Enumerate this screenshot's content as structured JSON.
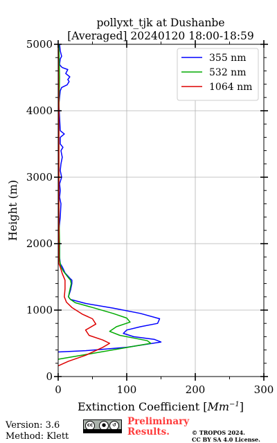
{
  "chart_data": {
    "type": "line",
    "title": "pollyxt_tjk at Dushanbe",
    "subtitle": "[Averaged] 20240120 18:00-18:59",
    "xlabel_prefix": "Extinction Coefficient [",
    "xlabel_unit": "Mm",
    "xlabel_exp": "−1",
    "xlabel_suffix": "]",
    "ylabel": "Height (m)",
    "xlim": [
      0,
      300
    ],
    "ylim": [
      0,
      5000
    ],
    "xticks": [
      0,
      100,
      200,
      300
    ],
    "xtick_labels": [
      "0",
      "100",
      "200",
      "300"
    ],
    "yticks": [
      0,
      1000,
      2000,
      3000,
      4000,
      5000
    ],
    "ytick_labels": [
      "0",
      "1000",
      "2000",
      "3000",
      "4000",
      "5000"
    ],
    "grid": true,
    "legend_position": "top-right",
    "series": [
      {
        "name": "355 nm",
        "color": "#0000ff",
        "points": [
          [
            0,
            370
          ],
          [
            40,
            390
          ],
          [
            100,
            440
          ],
          [
            150,
            520
          ],
          [
            140,
            560
          ],
          [
            110,
            600
          ],
          [
            95,
            650
          ],
          [
            100,
            700
          ],
          [
            120,
            750
          ],
          [
            145,
            800
          ],
          [
            148,
            870
          ],
          [
            120,
            950
          ],
          [
            80,
            1030
          ],
          [
            40,
            1100
          ],
          [
            18,
            1160
          ],
          [
            15,
            1200
          ],
          [
            18,
            1300
          ],
          [
            20,
            1400
          ],
          [
            20,
            1450
          ],
          [
            17,
            1480
          ],
          [
            10,
            1560
          ],
          [
            6,
            1650
          ],
          [
            3,
            1700
          ],
          [
            2,
            1800
          ],
          [
            2,
            2000
          ],
          [
            1,
            2200
          ],
          [
            3,
            2400
          ],
          [
            4,
            2600
          ],
          [
            2,
            2700
          ],
          [
            3,
            2800
          ],
          [
            2,
            2900
          ],
          [
            5,
            3000
          ],
          [
            3,
            3100
          ],
          [
            4,
            3200
          ],
          [
            6,
            3300
          ],
          [
            4,
            3400
          ],
          [
            7,
            3450
          ],
          [
            3,
            3500
          ],
          [
            3,
            3600
          ],
          [
            9,
            3650
          ],
          [
            3,
            3700
          ],
          [
            2,
            3900
          ],
          [
            1,
            4100
          ],
          [
            3,
            4300
          ],
          [
            5,
            4350
          ],
          [
            13,
            4390
          ],
          [
            16,
            4440
          ],
          [
            14,
            4470
          ],
          [
            17,
            4510
          ],
          [
            11,
            4560
          ],
          [
            14,
            4620
          ],
          [
            6,
            4650
          ],
          [
            3,
            4680
          ],
          [
            2,
            4700
          ],
          [
            3,
            4780
          ],
          [
            5,
            4820
          ],
          [
            3,
            4900
          ],
          [
            2,
            5000
          ]
        ]
      },
      {
        "name": "532 nm",
        "color": "#00aa00",
        "points": [
          [
            0,
            260
          ],
          [
            40,
            330
          ],
          [
            90,
            420
          ],
          [
            135,
            500
          ],
          [
            130,
            540
          ],
          [
            110,
            580
          ],
          [
            90,
            620
          ],
          [
            75,
            680
          ],
          [
            85,
            750
          ],
          [
            105,
            820
          ],
          [
            100,
            880
          ],
          [
            80,
            950
          ],
          [
            50,
            1040
          ],
          [
            25,
            1110
          ],
          [
            18,
            1160
          ],
          [
            15,
            1200
          ],
          [
            17,
            1300
          ],
          [
            19,
            1400
          ],
          [
            18,
            1450
          ],
          [
            14,
            1500
          ],
          [
            8,
            1580
          ],
          [
            4,
            1650
          ],
          [
            2,
            1750
          ],
          [
            2,
            2000
          ],
          [
            1,
            2500
          ],
          [
            1,
            3000
          ],
          [
            1,
            3500
          ],
          [
            1,
            4000
          ],
          [
            2,
            4500
          ],
          [
            1,
            5000
          ]
        ]
      },
      {
        "name": "1064 nm",
        "color": "#dd0000",
        "points": [
          [
            0,
            160
          ],
          [
            15,
            230
          ],
          [
            40,
            320
          ],
          [
            65,
            440
          ],
          [
            75,
            500
          ],
          [
            65,
            550
          ],
          [
            45,
            620
          ],
          [
            40,
            700
          ],
          [
            55,
            790
          ],
          [
            50,
            870
          ],
          [
            35,
            940
          ],
          [
            20,
            1040
          ],
          [
            12,
            1120
          ],
          [
            9,
            1200
          ],
          [
            10,
            1320
          ],
          [
            10,
            1450
          ],
          [
            6,
            1550
          ],
          [
            3,
            1650
          ],
          [
            1,
            1700
          ],
          [
            1,
            2000
          ],
          [
            1,
            3000
          ],
          [
            1,
            4000
          ],
          [
            0,
            5000
          ]
        ]
      }
    ]
  },
  "footer": {
    "version": "Version: 3.6",
    "method": "Method: Klett",
    "preliminary_line1": "Preliminary",
    "preliminary_line2": "Results.",
    "copyright_line1": "© TROPOS 2024.",
    "copyright_line2": "CC BY SA 4.0 License.",
    "license_badge": {
      "cc": "cc",
      "by": "BY",
      "sa": "SA"
    }
  }
}
